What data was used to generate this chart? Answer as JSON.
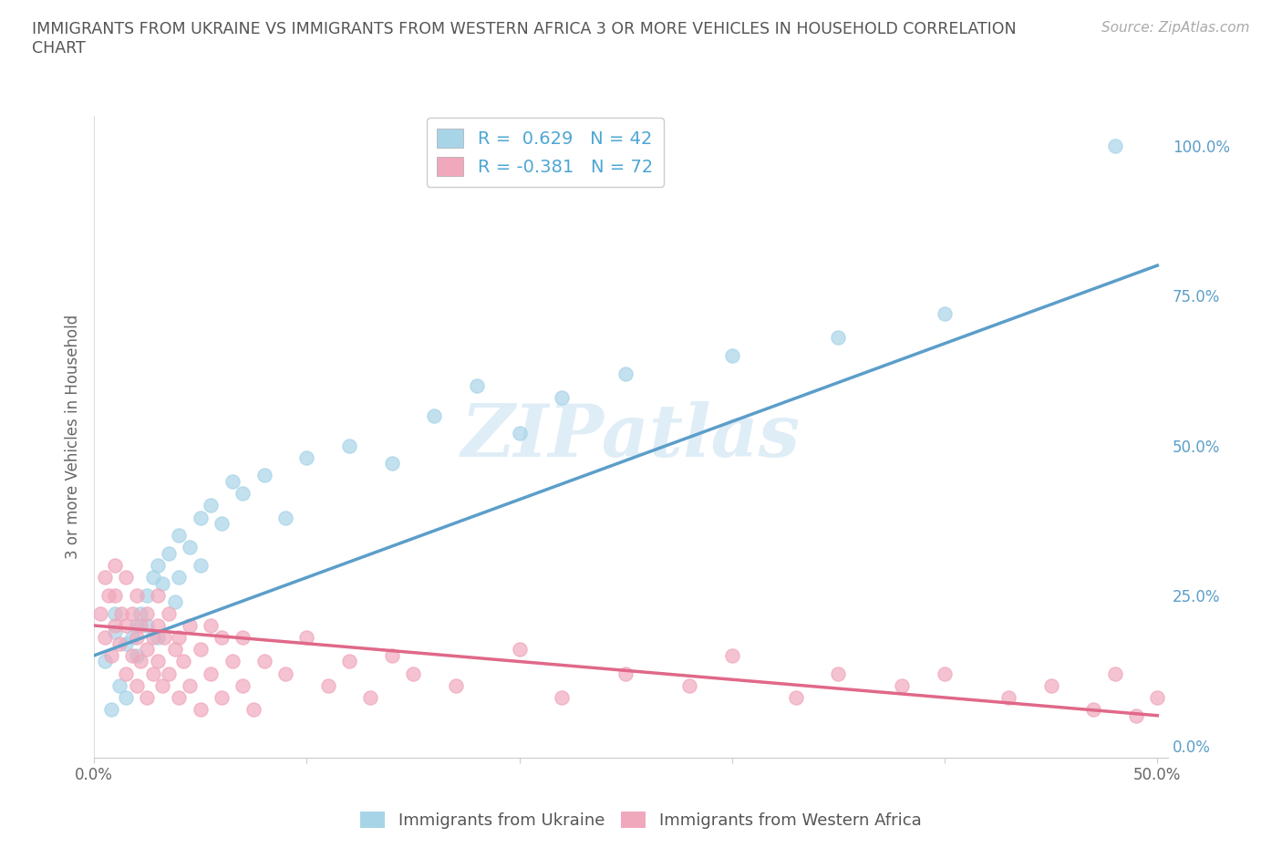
{
  "title": "IMMIGRANTS FROM UKRAINE VS IMMIGRANTS FROM WESTERN AFRICA 3 OR MORE VEHICLES IN HOUSEHOLD CORRELATION\nCHART",
  "source_text": "Source: ZipAtlas.com",
  "ylabel": "3 or more Vehicles in Household",
  "xlim": [
    0.0,
    0.5
  ],
  "ylim": [
    -0.02,
    1.05
  ],
  "ukraine_color": "#a8d4e8",
  "ukraine_line_color": "#5b9ec9",
  "western_africa_color": "#f0a8bc",
  "western_africa_line_color": "#e06888",
  "watermark": "ZIPatlas",
  "legend_label_ukraine": "R =  0.629   N = 42",
  "legend_label_wa": "R = -0.381   N = 72",
  "ukraine_scatter_x": [
    0.005,
    0.008,
    0.01,
    0.01,
    0.012,
    0.015,
    0.015,
    0.018,
    0.02,
    0.02,
    0.022,
    0.025,
    0.025,
    0.028,
    0.03,
    0.03,
    0.032,
    0.035,
    0.038,
    0.04,
    0.04,
    0.045,
    0.05,
    0.05,
    0.055,
    0.06,
    0.065,
    0.07,
    0.08,
    0.09,
    0.1,
    0.12,
    0.14,
    0.16,
    0.18,
    0.2,
    0.22,
    0.25,
    0.3,
    0.35,
    0.4,
    0.48
  ],
  "ukraine_scatter_y": [
    0.14,
    0.06,
    0.19,
    0.22,
    0.1,
    0.17,
    0.08,
    0.18,
    0.2,
    0.15,
    0.22,
    0.25,
    0.2,
    0.28,
    0.18,
    0.3,
    0.27,
    0.32,
    0.24,
    0.35,
    0.28,
    0.33,
    0.3,
    0.38,
    0.4,
    0.37,
    0.44,
    0.42,
    0.45,
    0.38,
    0.48,
    0.5,
    0.47,
    0.55,
    0.6,
    0.52,
    0.58,
    0.62,
    0.65,
    0.68,
    0.72,
    1.0
  ],
  "wa_scatter_x": [
    0.003,
    0.005,
    0.005,
    0.007,
    0.008,
    0.01,
    0.01,
    0.01,
    0.012,
    0.013,
    0.015,
    0.015,
    0.015,
    0.018,
    0.018,
    0.02,
    0.02,
    0.02,
    0.022,
    0.022,
    0.025,
    0.025,
    0.025,
    0.028,
    0.028,
    0.03,
    0.03,
    0.03,
    0.032,
    0.033,
    0.035,
    0.035,
    0.038,
    0.04,
    0.04,
    0.042,
    0.045,
    0.045,
    0.05,
    0.05,
    0.055,
    0.055,
    0.06,
    0.06,
    0.065,
    0.07,
    0.07,
    0.075,
    0.08,
    0.09,
    0.1,
    0.11,
    0.12,
    0.13,
    0.14,
    0.15,
    0.17,
    0.2,
    0.22,
    0.25,
    0.28,
    0.3,
    0.33,
    0.35,
    0.38,
    0.4,
    0.43,
    0.45,
    0.47,
    0.48,
    0.49,
    0.5
  ],
  "wa_scatter_y": [
    0.22,
    0.18,
    0.28,
    0.25,
    0.15,
    0.2,
    0.25,
    0.3,
    0.17,
    0.22,
    0.12,
    0.2,
    0.28,
    0.15,
    0.22,
    0.1,
    0.18,
    0.25,
    0.2,
    0.14,
    0.08,
    0.16,
    0.22,
    0.18,
    0.12,
    0.14,
    0.2,
    0.25,
    0.1,
    0.18,
    0.12,
    0.22,
    0.16,
    0.08,
    0.18,
    0.14,
    0.1,
    0.2,
    0.06,
    0.16,
    0.12,
    0.2,
    0.08,
    0.18,
    0.14,
    0.1,
    0.18,
    0.06,
    0.14,
    0.12,
    0.18,
    0.1,
    0.14,
    0.08,
    0.15,
    0.12,
    0.1,
    0.16,
    0.08,
    0.12,
    0.1,
    0.15,
    0.08,
    0.12,
    0.1,
    0.12,
    0.08,
    0.1,
    0.06,
    0.12,
    0.05,
    0.08
  ],
  "background_color": "#ffffff",
  "grid_color": "#c8c8c8"
}
